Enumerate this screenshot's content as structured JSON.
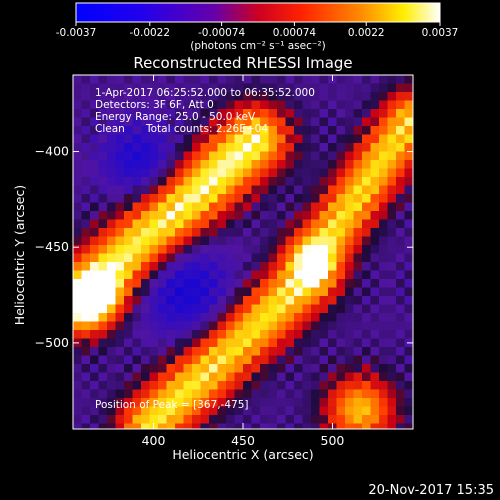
{
  "colorbar": {
    "tick_labels": [
      "-0.0037",
      "-0.0022",
      "-0.00074",
      "0.00074",
      "0.0022",
      "0.0037"
    ],
    "tick_values": [
      -0.0037,
      -0.0022,
      -0.00074,
      0.00074,
      0.0022,
      0.0037
    ],
    "range": [
      -0.0037,
      0.0037
    ],
    "units": "(photons cm⁻² s⁻¹ asec⁻²)",
    "colors": [
      "#0000ff",
      "#4400cc",
      "#ff0000",
      "#ff8800",
      "#ffff00",
      "#ffffff"
    ]
  },
  "chart_data": {
    "type": "heatmap",
    "title": "Reconstructed RHESSI Image",
    "xlabel": "Heliocentric X (arcsec)",
    "ylabel": "Heliocentric Y (arcsec)",
    "xlim": [
      355,
      545
    ],
    "ylim": [
      -545,
      -360
    ],
    "x_ticks": [
      400,
      450,
      500
    ],
    "x_tick_labels": [
      "400",
      "450",
      "500"
    ],
    "y_ticks": [
      -400,
      -450,
      -500
    ],
    "y_tick_labels": [
      "−400",
      "−450",
      "−500"
    ],
    "annotations": [
      "1-Apr-2017 06:25:52.000 to 06:35:52.000",
      "Detectors: 3F 6F, Att 0",
      "Energy Range: 25.0 - 50.0 keV",
      "Clean",
      "Total counts: 2.26E+04"
    ],
    "peak_label": "Position of Peak = [367,-475]",
    "peak_position": [
      367,
      -475
    ],
    "grid": false
  },
  "footer": {
    "timestamp": "20-Nov-2017 15:35"
  }
}
